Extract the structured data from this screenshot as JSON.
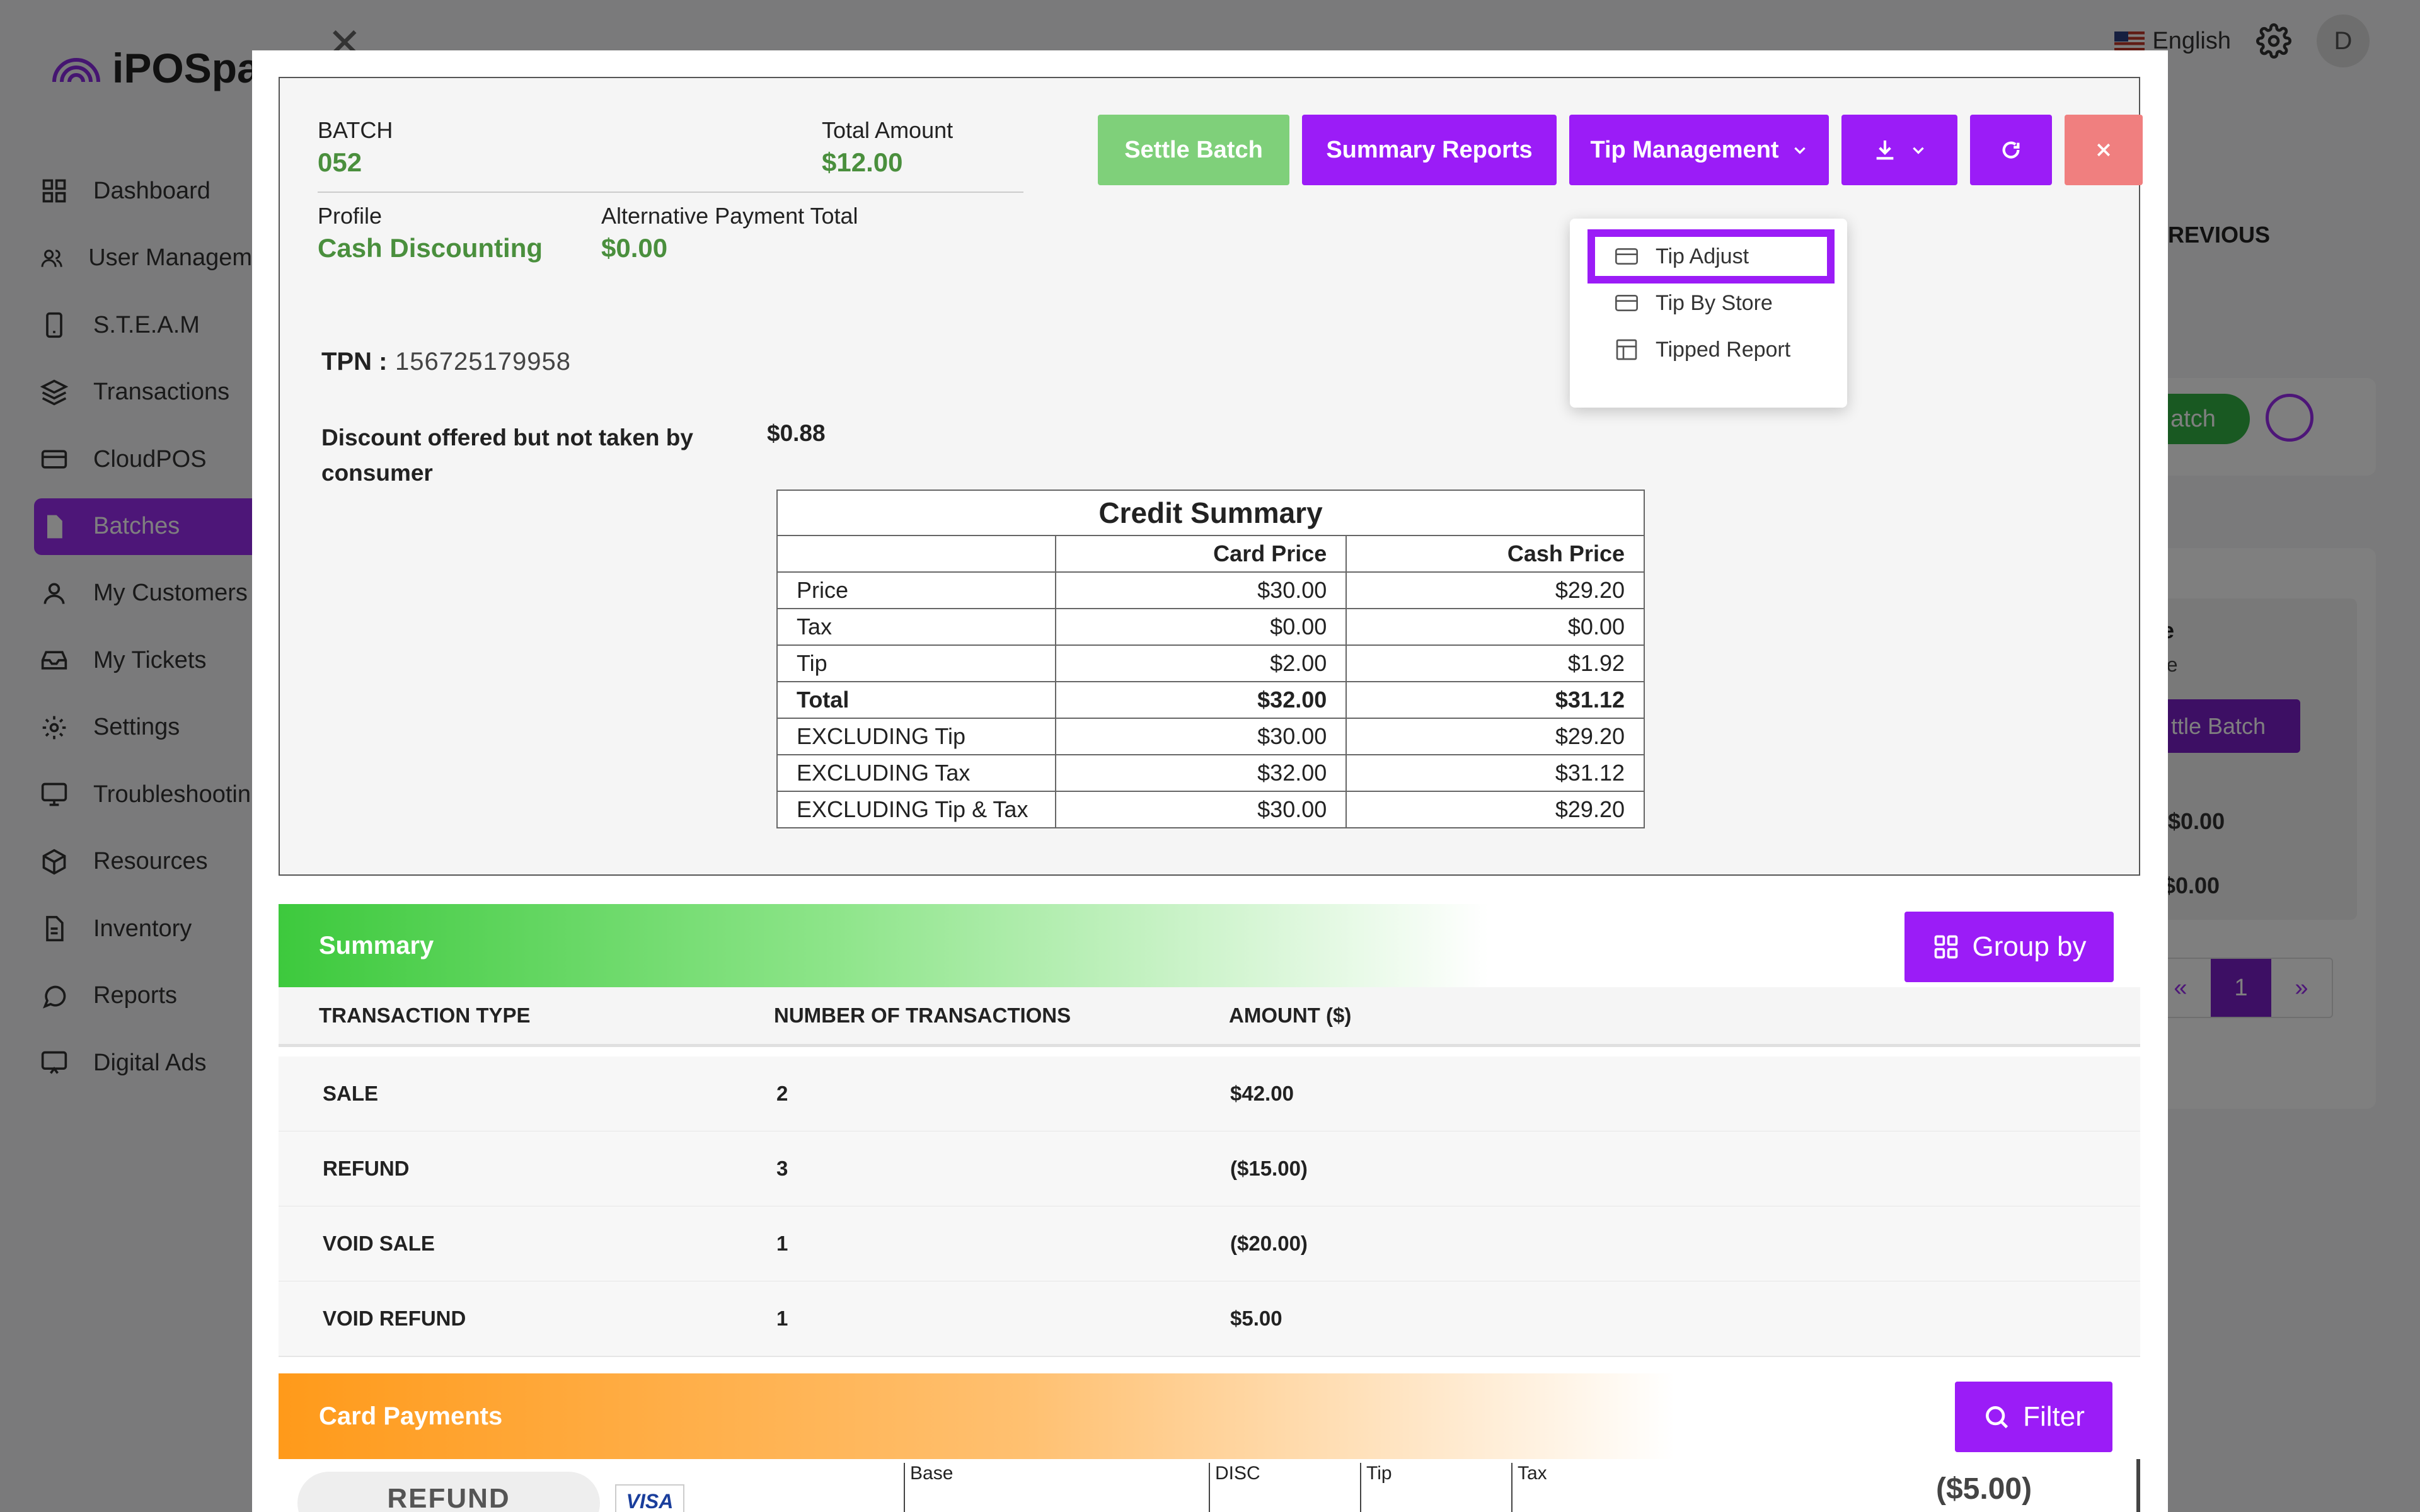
{
  "app": {
    "brand": "iPOSpay",
    "language": "English",
    "avatar_initial": "D"
  },
  "sidebar": {
    "items": [
      {
        "label": "Dashboard",
        "icon": "grid-icon"
      },
      {
        "label": "User Managem",
        "icon": "users-icon"
      },
      {
        "label": "S.T.E.A.M",
        "icon": "phone-icon"
      },
      {
        "label": "Transactions",
        "icon": "layers-icon"
      },
      {
        "label": "CloudPOS",
        "icon": "card-icon"
      },
      {
        "label": "Batches",
        "icon": "file-icon",
        "active": true
      },
      {
        "label": "My Customers",
        "icon": "user-icon"
      },
      {
        "label": "My Tickets",
        "icon": "inbox-icon"
      },
      {
        "label": "Settings",
        "icon": "gear-icon"
      },
      {
        "label": "Troubleshootin",
        "icon": "monitor-icon"
      },
      {
        "label": "Resources",
        "icon": "box-icon"
      },
      {
        "label": "Inventory",
        "icon": "document-icon"
      },
      {
        "label": "Reports",
        "icon": "chat-icon"
      },
      {
        "label": "Digital Ads",
        "icon": "screen-icon"
      }
    ]
  },
  "background": {
    "previous": "REVIOUS",
    "batch_btn": "atch",
    "card_title": "le",
    "card_sub": "ee",
    "settle_btn": "ttle Batch",
    "amount1": "$0.00",
    "amount2": ": $0.00",
    "pager": [
      "«",
      "1",
      "»"
    ]
  },
  "modal": {
    "batch_label": "BATCH",
    "batch_value": "052",
    "total_amount_label": "Total Amount",
    "total_amount_value": "$12.00",
    "profile_label": "Profile",
    "profile_value": "Cash Discounting",
    "alt_payment_label": "Alternative Payment Total",
    "alt_payment_value": "$0.00",
    "buttons": {
      "settle_batch": "Settle Batch",
      "summary_reports": "Summary Reports",
      "tip_management": "Tip Management"
    },
    "tip_menu": [
      {
        "label": "Tip Adjust",
        "icon": "card-icon"
      },
      {
        "label": "Tip By Store",
        "icon": "card-icon"
      },
      {
        "label": "Tipped Report",
        "icon": "table-icon"
      }
    ],
    "tpn_label": "TPN :",
    "tpn_value": "156725179958",
    "discount_label": "Discount offered but not taken by consumer",
    "discount_value": "$0.88",
    "credit_summary": {
      "title": "Credit Summary",
      "columns": [
        "",
        "Card Price",
        "Cash Price"
      ],
      "rows": [
        {
          "label": "Price",
          "card": "$30.00",
          "cash": "$29.20"
        },
        {
          "label": "Tax",
          "card": "$0.00",
          "cash": "$0.00"
        },
        {
          "label": "Tip",
          "card": "$2.00",
          "cash": "$1.92"
        },
        {
          "label": "Total",
          "card": "$32.00",
          "cash": "$31.12",
          "bold": true
        },
        {
          "label": "EXCLUDING Tip",
          "card": "$30.00",
          "cash": "$29.20"
        },
        {
          "label": "EXCLUDING Tax",
          "card": "$32.00",
          "cash": "$31.12"
        },
        {
          "label": "EXCLUDING Tip & Tax",
          "card": "$30.00",
          "cash": "$29.20"
        }
      ]
    },
    "summary": {
      "title": "Summary",
      "group_by": "Group by",
      "headers": [
        "TRANSACTION TYPE",
        "NUMBER OF TRANSACTIONS",
        "AMOUNT ($)"
      ],
      "rows": [
        {
          "type": "SALE",
          "count": "2",
          "amount": "$42.00"
        },
        {
          "type": "REFUND",
          "count": "3",
          "amount": "($15.00)"
        },
        {
          "type": "VOID SALE",
          "count": "1",
          "amount": "($20.00)"
        },
        {
          "type": "VOID REFUND",
          "count": "1",
          "amount": "$5.00"
        }
      ]
    },
    "card_payments": {
      "title": "Card Payments",
      "filter": "Filter",
      "first_row": {
        "type": "REFUND",
        "card_brand": "VISA",
        "columns": [
          "Base",
          "DISC",
          "Tip",
          "Tax"
        ],
        "amount": "($5.00)"
      }
    }
  },
  "colors": {
    "accent": "#9b1cf7",
    "green": "#4a8f3d",
    "settle": "#7fd07a",
    "close": "#f07f7f"
  }
}
